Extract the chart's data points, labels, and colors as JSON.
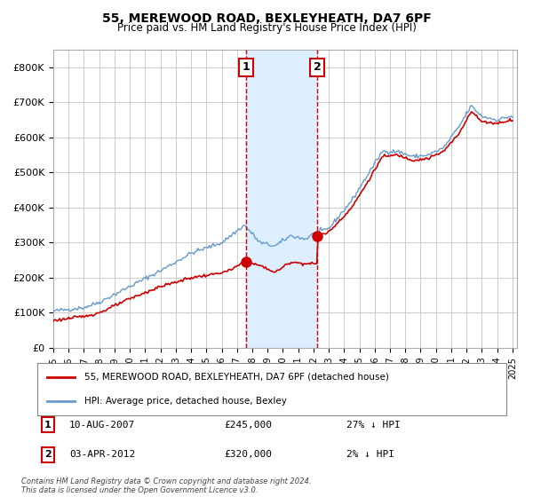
{
  "title1": "55, MEREWOOD ROAD, BEXLEYHEATH, DA7 6PF",
  "title2": "Price paid vs. HM Land Registry's House Price Index (HPI)",
  "legend_label1": "55, MEREWOOD ROAD, BEXLEYHEATH, DA7 6PF (detached house)",
  "legend_label2": "HPI: Average price, detached house, Bexley",
  "annotation1_label": "1",
  "annotation1_date": "10-AUG-2007",
  "annotation1_price": "£245,000",
  "annotation1_hpi": "27% ↓ HPI",
  "annotation2_label": "2",
  "annotation2_date": "03-APR-2012",
  "annotation2_price": "£320,000",
  "annotation2_hpi": "2% ↓ HPI",
  "footer": "Contains HM Land Registry data © Crown copyright and database right 2024.\nThis data is licensed under the Open Government Licence v3.0.",
  "line1_color": "#cc0000",
  "line2_color": "#6699cc",
  "marker_color": "#cc0000",
  "shade_color": "#ddeeff",
  "vline_color": "#cc0000",
  "bg_color": "#ffffff",
  "grid_color": "#cccccc",
  "ylim": [
    0,
    850000
  ],
  "yticks": [
    0,
    100000,
    200000,
    300000,
    400000,
    500000,
    600000,
    700000,
    800000
  ],
  "xstart": 1995,
  "xend": 2025,
  "annotation1_year": 2007.6,
  "annotation2_year": 2012.25,
  "annotation1_price_val": 245000,
  "annotation2_price_val": 320000
}
